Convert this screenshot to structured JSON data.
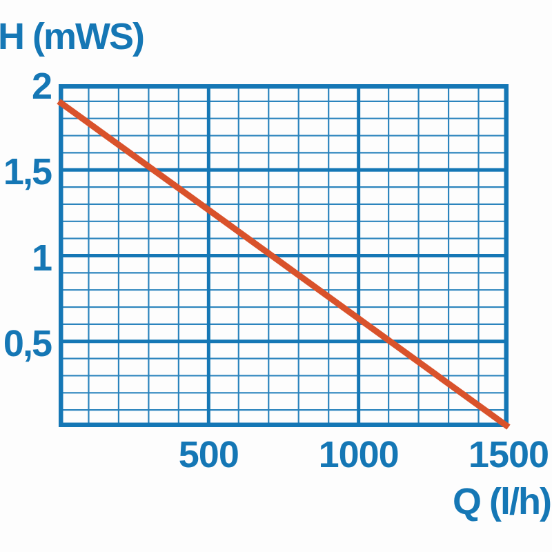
{
  "chart_data": {
    "type": "line",
    "title": "",
    "xlabel": "Q (l/h)",
    "ylabel": "H (mWS)",
    "xlim": [
      0,
      1500
    ],
    "ylim": [
      0,
      2
    ],
    "x_minor_step": 100,
    "x_major_step": 500,
    "y_minor_step": 0.1,
    "y_major_step": 0.5,
    "grid": "full-mesh-minor-and-major",
    "legend": "none",
    "x_ticks": [
      {
        "value": 500,
        "label": "500"
      },
      {
        "value": 1000,
        "label": "1000"
      },
      {
        "value": 1500,
        "label": "1500"
      }
    ],
    "y_ticks": [
      {
        "value": 2,
        "label": "2"
      },
      {
        "value": 1.5,
        "label": "1,5"
      },
      {
        "value": 1,
        "label": "1"
      },
      {
        "value": 0.5,
        "label": "0,5"
      }
    ],
    "series": [
      {
        "name": "pump-head-flow-curve",
        "color": "#d9522b",
        "points": [
          [
            0,
            1.9
          ],
          [
            1500,
            0
          ]
        ]
      }
    ],
    "colors": {
      "grid_minor": "#2b84bd",
      "grid_major": "#1577b5",
      "border": "#1577b5",
      "labels": "#1577b5",
      "curve": "#d9522b",
      "background": "#fdfdfd"
    }
  }
}
